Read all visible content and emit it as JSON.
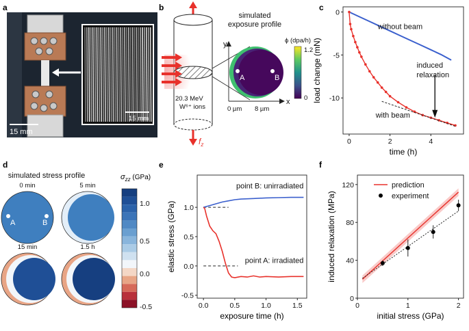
{
  "panels": {
    "a": {
      "label": "a",
      "scale_main": "15 mm",
      "scale_inset": "16 µm"
    },
    "b": {
      "label": "b",
      "title_line1": "simulated",
      "title_line2": "exposure profile",
      "phi_label": "ϕ (dpa/h)",
      "cbar_max": "1.2",
      "cbar_min": "0",
      "axis_y": "y",
      "axis_x": "x",
      "point_a": "A",
      "point_b": "B",
      "tick_0": "0 µm",
      "tick_8": "8 µm",
      "ion_line1": "20.3 MeV",
      "ion_line2": "W⁶⁺ ions",
      "force": "f",
      "force_sub": "z"
    },
    "c": {
      "label": "c"
    },
    "d": {
      "label": "d",
      "title": "simulated stress profile",
      "times": [
        "0 min",
        "5 min",
        "15 min",
        "1.5 h"
      ],
      "point_a": "A",
      "point_b": "B",
      "cbar_title": "σ",
      "cbar_sub": "zz",
      "cbar_unit": " (GPa)",
      "cbar_ticks": [
        "1.0",
        "0.5",
        "0.0",
        "-0.5"
      ]
    },
    "e": {
      "label": "e"
    },
    "f": {
      "label": "f"
    }
  },
  "colors": {
    "blue": "#3a5fcd",
    "red": "#e8312b",
    "black": "#000000"
  },
  "chart_data": [
    {
      "id": "c",
      "type": "line",
      "xlabel": "time (h)",
      "ylabel": "load change (mN)",
      "xlim": [
        -0.3,
        5.6
      ],
      "ylim": [
        -14.2,
        0.6
      ],
      "xticks": [
        0,
        2,
        4
      ],
      "yticks": [
        0,
        -5,
        -10
      ],
      "series": [
        {
          "name": "without beam",
          "color": "#3a5fcd",
          "x": [
            0,
            0.5,
            1,
            1.5,
            2,
            2.5,
            3,
            3.5,
            4,
            4.5,
            5.0
          ],
          "y": [
            0,
            -0.55,
            -1.1,
            -1.65,
            -2.2,
            -2.75,
            -3.3,
            -3.85,
            -4.4,
            -4.95,
            -5.6
          ]
        },
        {
          "name": "with beam",
          "color": "#e8312b",
          "x": [
            0,
            0.05,
            0.1,
            0.2,
            0.3,
            0.4,
            0.5,
            0.6,
            0.8,
            1.0,
            1.2,
            1.4,
            1.6,
            1.8,
            2.0,
            2.4,
            2.8,
            3.2,
            3.6,
            4.0,
            4.4,
            4.8,
            5.2
          ],
          "y": [
            0,
            -1.4,
            -2.0,
            -2.8,
            -3.5,
            -4.1,
            -4.7,
            -5.2,
            -6.1,
            -6.9,
            -7.6,
            -8.2,
            -8.8,
            -9.3,
            -9.8,
            -10.5,
            -11.1,
            -11.6,
            -12.0,
            -12.3,
            -12.6,
            -12.9,
            -13.2
          ]
        }
      ],
      "annotations": {
        "without": "without beam",
        "induced_1": "induced",
        "induced_2": "relaxation",
        "with": "with beam"
      }
    },
    {
      "id": "e",
      "type": "line",
      "xlabel": "exposure time (h)",
      "ylabel": "elastic stress (GPa)",
      "xlim": [
        -0.1,
        1.65
      ],
      "ylim": [
        -0.55,
        1.55
      ],
      "xticks": [
        0.0,
        0.5,
        1.0,
        1.5
      ],
      "yticks": [
        1.0,
        0.5,
        0.0,
        -0.5
      ],
      "series": [
        {
          "name": "point B: unirradiated",
          "color": "#3a5fcd",
          "x": [
            0,
            0.1,
            0.2,
            0.3,
            0.4,
            0.5,
            0.6,
            0.8,
            1.0,
            1.2,
            1.4,
            1.6
          ],
          "y": [
            1.0,
            1.03,
            1.06,
            1.09,
            1.11,
            1.13,
            1.14,
            1.15,
            1.16,
            1.165,
            1.17,
            1.17
          ]
        },
        {
          "name": "point A: irradiated",
          "color": "#e8312b",
          "x": [
            0,
            0.02,
            0.05,
            0.1,
            0.15,
            0.2,
            0.25,
            0.3,
            0.35,
            0.4,
            0.45,
            0.5,
            0.6,
            0.7,
            0.8,
            0.9,
            1.0,
            1.2,
            1.4,
            1.6
          ],
          "y": [
            1.0,
            0.98,
            0.85,
            0.68,
            0.6,
            0.55,
            0.42,
            0.25,
            0.05,
            -0.12,
            -0.19,
            -0.2,
            -0.18,
            -0.19,
            -0.17,
            -0.19,
            -0.18,
            -0.19,
            -0.18,
            -0.18
          ]
        }
      ],
      "annotations": {
        "b": "point B: unirradiated",
        "a": "point A: irradiated"
      }
    },
    {
      "id": "f",
      "type": "scatter",
      "xlabel": "initial stress (GPa)",
      "ylabel": "induced relaxation (MPa)",
      "xlim": [
        0,
        2.1
      ],
      "ylim": [
        0,
        130
      ],
      "xticks": [
        0,
        1,
        2
      ],
      "yticks": [
        0,
        40,
        80,
        120
      ],
      "legend": [
        "prediction",
        "experiment"
      ],
      "prediction": {
        "x": [
          0.1,
          2.0
        ],
        "y": [
          20,
          112
        ],
        "band": 4
      },
      "experiment": {
        "x": [
          0.5,
          1.0,
          1.5,
          2.0
        ],
        "y": [
          37,
          53,
          70,
          98
        ],
        "err": [
          3,
          9,
          7,
          6
        ]
      },
      "fit": {
        "x": [
          0.1,
          2.0
        ],
        "y": [
          21,
          92
        ]
      }
    }
  ]
}
